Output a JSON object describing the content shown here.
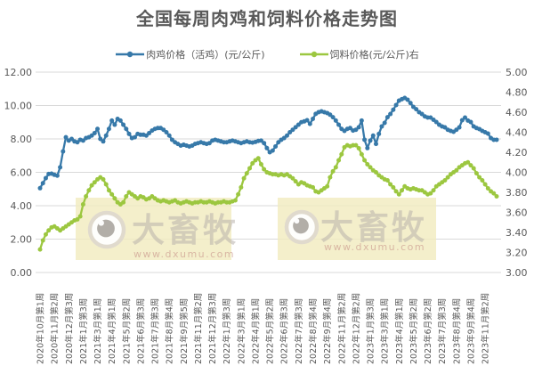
{
  "title": "全国每周肉鸡和饲料价格走势图",
  "watermark": {
    "brand": "大畜牧",
    "url": "www.dxumu.com"
  },
  "colors": {
    "background": "#FFFFFF",
    "grid": "#D9D9D9",
    "text": "#595959",
    "axis_text": "#595959",
    "broiler_blue": "#3779A9",
    "feed_green": "#9CC740",
    "watermark_box": "#F2ECC0",
    "watermark_brand": "#B9B2AC",
    "watermark_url": "#C79188"
  },
  "chart_data": {
    "type": "line",
    "title": "全国每周肉鸡和饲料价格走势图",
    "grid": true,
    "legend_position": "top",
    "n_points": 160,
    "x_tick_every": 5,
    "x_tick_labels": [
      "2020年10月第1周",
      "2020年11月第2周",
      "2020年12月第3周",
      "2021年1月第3周",
      "2021年3月第1周",
      "2021年4月第1周",
      "2021年5月第2周",
      "2021年6月第3周",
      "2021年7月第3周",
      "2021年8月第4周",
      "2021年9月第5周",
      "2021年11月第2周",
      "2021年12月第3周",
      "2022年1月第3周",
      "2022年3月第1周",
      "2022年4月第1周",
      "2022年5月第2周",
      "2022年6月第3周",
      "2022年7月第3周",
      "2022年8月第4周",
      "2022年9月第4周",
      "2022年11月第2周",
      "2022年12月第2周",
      "2023年1月第3周",
      "2023年3月第1周",
      "2023年4月第1周",
      "2023年5月第2周",
      "2023年6月第2周",
      "2023年7月第3周",
      "2023年8月第4周",
      "2023年9月第4周",
      "2023年11月第2周"
    ],
    "left_axis": {
      "min": 0,
      "max": 12,
      "step": 2,
      "tick_labels": [
        "12.00",
        "10.00",
        "8.00",
        "6.00",
        "4.00",
        "2.00",
        "0.00"
      ]
    },
    "right_axis": {
      "min": 3,
      "max": 5,
      "step": 0.2,
      "tick_labels": [
        "5.00",
        "4.80",
        "4.60",
        "4.40",
        "4.20",
        "4.00",
        "3.80",
        "3.60",
        "3.40",
        "3.20",
        "3.00"
      ]
    },
    "series": [
      {
        "name": "肉鸡价格（活鸡）(元/公斤)",
        "axis": "left",
        "color": "#3779A9",
        "marker": "circle",
        "values": [
          5.05,
          5.35,
          5.65,
          5.9,
          5.92,
          5.85,
          5.8,
          6.3,
          7.25,
          8.1,
          7.9,
          8.0,
          7.85,
          7.8,
          7.95,
          7.9,
          8.05,
          8.1,
          8.2,
          8.35,
          8.6,
          8.0,
          7.85,
          8.2,
          8.6,
          9.1,
          8.85,
          9.2,
          9.1,
          8.85,
          8.6,
          8.3,
          8.05,
          8.1,
          8.3,
          8.25,
          8.25,
          8.2,
          8.35,
          8.5,
          8.6,
          8.65,
          8.65,
          8.55,
          8.4,
          8.2,
          7.95,
          7.8,
          7.7,
          7.6,
          7.65,
          7.6,
          7.55,
          7.6,
          7.7,
          7.75,
          7.8,
          7.75,
          7.7,
          7.75,
          7.9,
          7.95,
          7.9,
          7.85,
          7.8,
          7.8,
          7.85,
          7.9,
          7.85,
          7.8,
          7.75,
          7.8,
          7.85,
          7.8,
          7.78,
          7.82,
          7.88,
          7.9,
          7.75,
          7.45,
          7.2,
          7.3,
          7.55,
          7.8,
          7.95,
          8.05,
          8.2,
          8.4,
          8.55,
          8.7,
          8.85,
          9.0,
          9.05,
          9.12,
          8.9,
          9.2,
          9.5,
          9.6,
          9.65,
          9.6,
          9.55,
          9.45,
          9.3,
          9.1,
          8.85,
          8.6,
          8.48,
          8.6,
          8.65,
          8.5,
          8.55,
          8.7,
          9.1,
          7.95,
          7.45,
          7.9,
          8.2,
          7.7,
          8.3,
          8.75,
          8.96,
          9.3,
          9.49,
          9.75,
          10.03,
          10.29,
          10.38,
          10.45,
          10.35,
          10.15,
          9.92,
          9.78,
          9.6,
          9.49,
          9.35,
          9.28,
          9.28,
          9.15,
          9.01,
          8.85,
          8.75,
          8.69,
          8.55,
          8.48,
          8.43,
          8.55,
          8.69,
          9.12,
          9.28,
          9.1,
          9.01,
          8.75,
          8.65,
          8.59,
          8.48,
          8.4,
          8.32,
          8.05,
          7.95,
          7.95
        ]
      },
      {
        "name": "饲料价格(元/公斤)右",
        "axis": "right",
        "color": "#9CC740",
        "marker": "circle",
        "values": [
          3.23,
          3.32,
          3.38,
          3.42,
          3.45,
          3.46,
          3.44,
          3.42,
          3.44,
          3.46,
          3.48,
          3.5,
          3.52,
          3.53,
          3.56,
          3.68,
          3.76,
          3.82,
          3.87,
          3.9,
          3.93,
          3.95,
          3.93,
          3.88,
          3.82,
          3.78,
          3.74,
          3.7,
          3.68,
          3.7,
          3.76,
          3.8,
          3.78,
          3.76,
          3.74,
          3.76,
          3.75,
          3.73,
          3.74,
          3.76,
          3.74,
          3.72,
          3.71,
          3.72,
          3.71,
          3.7,
          3.71,
          3.72,
          3.7,
          3.69,
          3.7,
          3.71,
          3.7,
          3.69,
          3.7,
          3.7,
          3.71,
          3.7,
          3.7,
          3.71,
          3.7,
          3.69,
          3.7,
          3.7,
          3.71,
          3.7,
          3.7,
          3.71,
          3.72,
          3.78,
          3.85,
          3.94,
          3.99,
          4.04,
          4.09,
          4.12,
          4.14,
          4.08,
          4.03,
          4.0,
          3.99,
          3.98,
          3.98,
          3.97,
          3.98,
          3.97,
          3.98,
          3.96,
          3.94,
          3.91,
          3.88,
          3.9,
          3.89,
          3.87,
          3.86,
          3.85,
          3.81,
          3.8,
          3.82,
          3.84,
          3.86,
          3.95,
          4.01,
          4.05,
          4.12,
          4.18,
          4.25,
          4.27,
          4.26,
          4.27,
          4.27,
          4.24,
          4.18,
          4.12,
          4.08,
          4.05,
          4.02,
          4.0,
          3.97,
          3.95,
          3.93,
          3.92,
          3.88,
          3.85,
          3.81,
          3.78,
          3.82,
          3.86,
          3.84,
          3.83,
          3.84,
          3.83,
          3.82,
          3.82,
          3.8,
          3.78,
          3.79,
          3.82,
          3.86,
          3.88,
          3.9,
          3.92,
          3.95,
          3.98,
          4.0,
          4.02,
          4.05,
          4.07,
          4.09,
          4.1,
          4.07,
          4.04,
          3.99,
          3.95,
          3.92,
          3.88,
          3.84,
          3.81,
          3.79,
          3.76
        ]
      }
    ]
  }
}
